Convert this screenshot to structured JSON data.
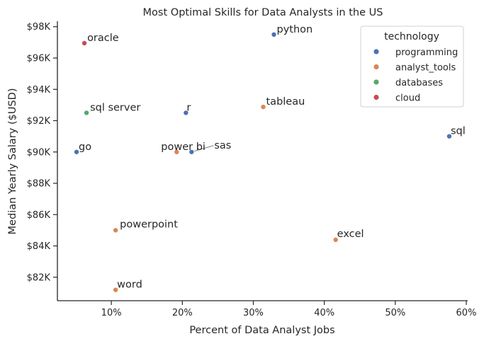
{
  "chart_data": {
    "type": "scatter",
    "title": "Most Optimal Skills for Data Analysts in the US",
    "xlabel": "Percent of Data Analyst Jobs",
    "ylabel": "Median Yearly Salary ($USD)",
    "xlim": [
      2.4,
      60.2
    ],
    "ylim": [
      80500,
      98350
    ],
    "x_ticks": [
      10,
      20,
      30,
      40,
      50,
      60
    ],
    "x_tick_labels": [
      "10%",
      "20%",
      "30%",
      "40%",
      "50%",
      "60%"
    ],
    "y_ticks": [
      82000,
      84000,
      86000,
      88000,
      90000,
      92000,
      94000,
      96000,
      98000
    ],
    "y_tick_labels": [
      "$82K",
      "$84K",
      "$86K",
      "$88K",
      "$90K",
      "$92K",
      "$94K",
      "$96K",
      "$98K"
    ],
    "grid": false,
    "legend": {
      "title": "technology",
      "placement": "top-right",
      "entries": [
        {
          "name": "programming",
          "color": "#4c72b0"
        },
        {
          "name": "analyst_tools",
          "color": "#dd8452"
        },
        {
          "name": "databases",
          "color": "#55a868"
        },
        {
          "name": "cloud",
          "color": "#c44e52"
        }
      ]
    },
    "points": [
      {
        "skill": "python",
        "technology": "programming",
        "x": 32.9,
        "y": 97500
      },
      {
        "skill": "oracle",
        "technology": "cloud",
        "x": 6.2,
        "y": 96950
      },
      {
        "skill": "tableau",
        "technology": "analyst_tools",
        "x": 31.4,
        "y": 92875
      },
      {
        "skill": "sql server",
        "technology": "databases",
        "x": 6.5,
        "y": 92500
      },
      {
        "skill": "r",
        "technology": "programming",
        "x": 20.5,
        "y": 92500
      },
      {
        "skill": "sql",
        "technology": "programming",
        "x": 57.6,
        "y": 91000
      },
      {
        "skill": "go",
        "technology": "programming",
        "x": 5.1,
        "y": 90000
      },
      {
        "skill": "power bi",
        "technology": "analyst_tools",
        "x": 19.2,
        "y": 90000
      },
      {
        "skill": "sas",
        "technology": "programming",
        "x": 21.3,
        "y": 90000
      },
      {
        "skill": "powerpoint",
        "technology": "analyst_tools",
        "x": 10.6,
        "y": 85000
      },
      {
        "skill": "excel",
        "technology": "analyst_tools",
        "x": 41.6,
        "y": 84392
      },
      {
        "skill": "word",
        "technology": "analyst_tools",
        "x": 10.6,
        "y": 81194
      }
    ]
  }
}
